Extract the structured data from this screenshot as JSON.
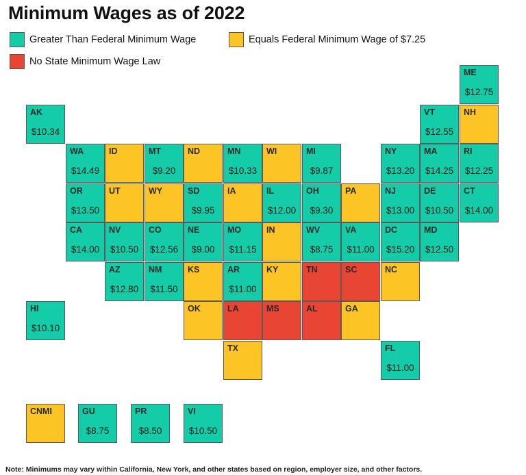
{
  "title": "Minimum Wages as of 2022",
  "colors": {
    "greater": "#14cca7",
    "equals": "#fcc525",
    "none": "#e94535"
  },
  "legend": [
    {
      "key": "greater",
      "label": "Greater Than Federal Minimum Wage"
    },
    {
      "key": "equals",
      "label": "Equals Federal Minimum Wage of $7.25"
    },
    {
      "key": "none",
      "label": "No State Minimum Wage Law"
    }
  ],
  "states": [
    {
      "abbr": "ME",
      "cat": "greater",
      "wage": "$12.75",
      "col": 11,
      "row": 0
    },
    {
      "abbr": "AK",
      "cat": "greater",
      "wage": "$10.34",
      "col": 0,
      "row": 1
    },
    {
      "abbr": "VT",
      "cat": "greater",
      "wage": "$12.55",
      "col": 10,
      "row": 1
    },
    {
      "abbr": "NH",
      "cat": "equals",
      "wage": "",
      "col": 11,
      "row": 1
    },
    {
      "abbr": "WA",
      "cat": "greater",
      "wage": "$14.49",
      "col": 1,
      "row": 2
    },
    {
      "abbr": "ID",
      "cat": "equals",
      "wage": "",
      "col": 2,
      "row": 2
    },
    {
      "abbr": "MT",
      "cat": "greater",
      "wage": "$9.20",
      "col": 3,
      "row": 2
    },
    {
      "abbr": "ND",
      "cat": "equals",
      "wage": "",
      "col": 4,
      "row": 2
    },
    {
      "abbr": "MN",
      "cat": "greater",
      "wage": "$10.33",
      "col": 5,
      "row": 2
    },
    {
      "abbr": "WI",
      "cat": "equals",
      "wage": "",
      "col": 6,
      "row": 2
    },
    {
      "abbr": "MI",
      "cat": "greater",
      "wage": "$9.87",
      "col": 7,
      "row": 2
    },
    {
      "abbr": "NY",
      "cat": "greater",
      "wage": "$13.20",
      "col": 9,
      "row": 2
    },
    {
      "abbr": "MA",
      "cat": "greater",
      "wage": "$14.25",
      "col": 10,
      "row": 2
    },
    {
      "abbr": "RI",
      "cat": "greater",
      "wage": "$12.25",
      "col": 11,
      "row": 2
    },
    {
      "abbr": "OR",
      "cat": "greater",
      "wage": "$13.50",
      "col": 1,
      "row": 3
    },
    {
      "abbr": "UT",
      "cat": "equals",
      "wage": "",
      "col": 2,
      "row": 3
    },
    {
      "abbr": "WY",
      "cat": "equals",
      "wage": "",
      "col": 3,
      "row": 3
    },
    {
      "abbr": "SD",
      "cat": "greater",
      "wage": "$9.95",
      "col": 4,
      "row": 3
    },
    {
      "abbr": "IA",
      "cat": "equals",
      "wage": "",
      "col": 5,
      "row": 3
    },
    {
      "abbr": "IL",
      "cat": "greater",
      "wage": "$12.00",
      "col": 6,
      "row": 3
    },
    {
      "abbr": "OH",
      "cat": "greater",
      "wage": "$9.30",
      "col": 7,
      "row": 3
    },
    {
      "abbr": "PA",
      "cat": "equals",
      "wage": "",
      "col": 8,
      "row": 3
    },
    {
      "abbr": "NJ",
      "cat": "greater",
      "wage": "$13.00",
      "col": 9,
      "row": 3
    },
    {
      "abbr": "DE",
      "cat": "greater",
      "wage": "$10.50",
      "col": 10,
      "row": 3
    },
    {
      "abbr": "CT",
      "cat": "greater",
      "wage": "$14.00",
      "col": 11,
      "row": 3
    },
    {
      "abbr": "CA",
      "cat": "greater",
      "wage": "$14.00",
      "col": 1,
      "row": 4
    },
    {
      "abbr": "NV",
      "cat": "greater",
      "wage": "$10.50",
      "col": 2,
      "row": 4
    },
    {
      "abbr": "CO",
      "cat": "greater",
      "wage": "$12.56",
      "col": 3,
      "row": 4
    },
    {
      "abbr": "NE",
      "cat": "greater",
      "wage": "$9.00",
      "col": 4,
      "row": 4
    },
    {
      "abbr": "MO",
      "cat": "greater",
      "wage": "$11.15",
      "col": 5,
      "row": 4
    },
    {
      "abbr": "IN",
      "cat": "equals",
      "wage": "",
      "col": 6,
      "row": 4
    },
    {
      "abbr": "WV",
      "cat": "greater",
      "wage": "$8.75",
      "col": 7,
      "row": 4
    },
    {
      "abbr": "VA",
      "cat": "greater",
      "wage": "$11.00",
      "col": 8,
      "row": 4
    },
    {
      "abbr": "DC",
      "cat": "greater",
      "wage": "$15.20",
      "col": 9,
      "row": 4
    },
    {
      "abbr": "MD",
      "cat": "greater",
      "wage": "$12.50",
      "col": 10,
      "row": 4
    },
    {
      "abbr": "AZ",
      "cat": "greater",
      "wage": "$12.80",
      "col": 2,
      "row": 5
    },
    {
      "abbr": "NM",
      "cat": "greater",
      "wage": "$11.50",
      "col": 3,
      "row": 5
    },
    {
      "abbr": "KS",
      "cat": "equals",
      "wage": "",
      "col": 4,
      "row": 5
    },
    {
      "abbr": "AR",
      "cat": "greater",
      "wage": "$11.00",
      "col": 5,
      "row": 5
    },
    {
      "abbr": "KY",
      "cat": "equals",
      "wage": "",
      "col": 6,
      "row": 5
    },
    {
      "abbr": "TN",
      "cat": "none",
      "wage": "",
      "col": 7,
      "row": 5
    },
    {
      "abbr": "SC",
      "cat": "none",
      "wage": "",
      "col": 8,
      "row": 5
    },
    {
      "abbr": "NC",
      "cat": "equals",
      "wage": "",
      "col": 9,
      "row": 5
    },
    {
      "abbr": "HI",
      "cat": "greater",
      "wage": "$10.10",
      "col": 0,
      "row": 6
    },
    {
      "abbr": "OK",
      "cat": "equals",
      "wage": "",
      "col": 4,
      "row": 6
    },
    {
      "abbr": "LA",
      "cat": "none",
      "wage": "",
      "col": 5,
      "row": 6
    },
    {
      "abbr": "MS",
      "cat": "none",
      "wage": "",
      "col": 6,
      "row": 6
    },
    {
      "abbr": "AL",
      "cat": "none",
      "wage": "",
      "col": 7,
      "row": 6
    },
    {
      "abbr": "GA",
      "cat": "equals",
      "wage": "",
      "col": 8,
      "row": 6
    },
    {
      "abbr": "TX",
      "cat": "equals",
      "wage": "",
      "col": 5,
      "row": 7
    },
    {
      "abbr": "FL",
      "cat": "greater",
      "wage": "$11.00",
      "col": 9,
      "row": 7
    }
  ],
  "territories": [
    {
      "abbr": "CNMI",
      "cat": "equals",
      "wage": ""
    },
    {
      "abbr": "GU",
      "cat": "greater",
      "wage": "$8.75"
    },
    {
      "abbr": "PR",
      "cat": "greater",
      "wage": "$8.50"
    },
    {
      "abbr": "VI",
      "cat": "greater",
      "wage": "$10.50"
    }
  ],
  "note": "Note: Minimums may vary within California, New York, and other states based on region, employer size, and other factors."
}
